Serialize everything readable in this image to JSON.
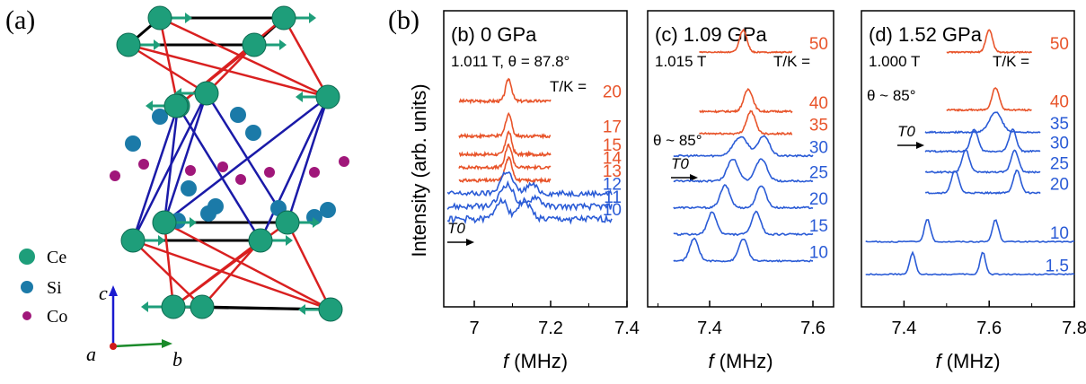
{
  "figure_label": "(b)",
  "structure": {
    "panel_label": "(a)",
    "legend": [
      {
        "label": "Ce",
        "color": "#1e9e7a"
      },
      {
        "label": "Si",
        "color": "#1b7aa8"
      },
      {
        "label": "Co",
        "color": "#a0177a"
      }
    ],
    "axes": {
      "c": "c",
      "a": "a",
      "b": "b"
    },
    "colors": {
      "ce": "#1e9e7a",
      "si": "#1b7aa8",
      "co": "#a0177a",
      "bond_red": "#d92020",
      "bond_blue": "#1a1aa8",
      "bond_black": "#000000",
      "moment": "#1e9e7a"
    }
  },
  "shared": {
    "ylabel": "Intensity (arb. units)",
    "xlabel_italic": "f",
    "xlabel_rest": " (MHz)",
    "orange": "#e8542a",
    "blue": "#2a5bd6"
  },
  "chart_data": [
    {
      "type": "line",
      "title": "(b) 0 GPa",
      "subtitle": "1.011 T, θ = 87.8°",
      "tk_label": "T/K =",
      "t0_label": "T0",
      "xlim": [
        6.92,
        7.4
      ],
      "xticks": [
        7,
        7.2,
        7.4
      ],
      "xtick_labels": [
        "7",
        "7.2",
        "7.4"
      ],
      "series": [
        {
          "label": "20",
          "color": "orange",
          "x0": 6.96,
          "x1": 7.2,
          "peaks": [
            [
              7.09,
              1.0,
              0.011
            ]
          ],
          "baseline": 0.695,
          "temp_label_y": 0.708,
          "noise": 0.01
        },
        {
          "label": "17",
          "color": "orange",
          "x0": 6.96,
          "x1": 7.2,
          "peaks": [
            [
              7.09,
              1.0,
              0.011
            ]
          ],
          "baseline": 0.577,
          "temp_label_y": 0.59,
          "noise": 0.01
        },
        {
          "label": "15",
          "color": "orange",
          "x0": 6.96,
          "x1": 7.2,
          "peaks": [
            [
              7.09,
              1.0,
              0.011
            ]
          ],
          "baseline": 0.515,
          "temp_label_y": 0.528,
          "noise": 0.01
        },
        {
          "label": "14",
          "color": "orange",
          "x0": 6.96,
          "x1": 7.2,
          "peaks": [
            [
              7.09,
              1.0,
              0.012
            ]
          ],
          "baseline": 0.471,
          "temp_label_y": 0.484,
          "noise": 0.01
        },
        {
          "label": "13",
          "color": "orange",
          "x0": 6.96,
          "x1": 7.2,
          "peaks": [
            [
              7.09,
              1.0,
              0.013
            ]
          ],
          "baseline": 0.427,
          "temp_label_y": 0.44,
          "noise": 0.01
        },
        {
          "label": "12",
          "color": "blue",
          "x0": 6.93,
          "x1": 7.36,
          "peaks": [
            [
              7.085,
              1.0,
              0.022
            ],
            [
              7.15,
              0.4,
              0.02
            ]
          ],
          "baseline": 0.383,
          "temp_label_y": 0.396,
          "noise": 0.018
        },
        {
          "label": "11",
          "color": "blue",
          "x0": 6.93,
          "x1": 7.36,
          "peaks": [
            [
              7.085,
              1.0,
              0.025
            ],
            [
              7.16,
              0.45,
              0.02
            ]
          ],
          "baseline": 0.339,
          "temp_label_y": 0.352,
          "noise": 0.02
        },
        {
          "label": "10",
          "color": "blue",
          "x0": 6.93,
          "x1": 7.36,
          "peaks": [
            [
              7.07,
              0.9,
              0.02
            ],
            [
              7.13,
              0.8,
              0.025
            ]
          ],
          "baseline": 0.296,
          "temp_label_y": 0.309,
          "noise": 0.022
        }
      ]
    },
    {
      "type": "line",
      "title": "(c) 1.09 GPa",
      "subtitle": "1.015 T",
      "theta": "θ ~ 85°",
      "tk_label": "T/K =",
      "t0_label": "T0",
      "xlim": [
        7.28,
        7.64
      ],
      "xticks": [
        7.4,
        7.6
      ],
      "xtick_labels": [
        "7.4",
        "7.6"
      ],
      "series": [
        {
          "label": "50",
          "color": "orange",
          "x0": 7.38,
          "x1": 7.56,
          "peaks": [
            [
              7.465,
              1.0,
              0.01
            ]
          ],
          "baseline": 0.86,
          "temp_label_y": 0.87,
          "noise": 0.004
        },
        {
          "label": "40",
          "color": "orange",
          "x0": 7.38,
          "x1": 7.56,
          "peaks": [
            [
              7.475,
              1.0,
              0.012
            ]
          ],
          "baseline": 0.66,
          "temp_label_y": 0.67,
          "noise": 0.006
        },
        {
          "label": "35",
          "color": "orange",
          "x0": 7.38,
          "x1": 7.56,
          "peaks": [
            [
              7.48,
              1.0,
              0.012
            ]
          ],
          "baseline": 0.585,
          "temp_label_y": 0.595,
          "noise": 0.006
        },
        {
          "label": "30",
          "color": "blue",
          "x0": 7.33,
          "x1": 7.6,
          "peaks": [
            [
              7.46,
              0.85,
              0.02
            ],
            [
              7.505,
              0.9,
              0.015
            ]
          ],
          "baseline": 0.51,
          "temp_label_y": 0.52,
          "noise": 0.006
        },
        {
          "label": "25",
          "color": "blue",
          "x0": 7.33,
          "x1": 7.6,
          "peaks": [
            [
              7.445,
              1.0,
              0.015
            ],
            [
              7.5,
              1.0,
              0.015
            ]
          ],
          "baseline": 0.425,
          "temp_label_y": 0.435,
          "noise": 0.006
        },
        {
          "label": "20",
          "color": "blue",
          "x0": 7.33,
          "x1": 7.6,
          "peaks": [
            [
              7.43,
              1.0,
              0.013
            ],
            [
              7.5,
              1.0,
              0.013
            ]
          ],
          "baseline": 0.335,
          "temp_label_y": 0.345,
          "noise": 0.006
        },
        {
          "label": "15",
          "color": "blue",
          "x0": 7.33,
          "x1": 7.6,
          "peaks": [
            [
              7.405,
              1.0,
              0.012
            ],
            [
              7.49,
              1.0,
              0.012
            ]
          ],
          "baseline": 0.245,
          "temp_label_y": 0.255,
          "noise": 0.006
        },
        {
          "label": "10",
          "color": "blue",
          "x0": 7.33,
          "x1": 7.6,
          "peaks": [
            [
              7.37,
              1.0,
              0.012
            ],
            [
              7.465,
              1.0,
              0.012
            ]
          ],
          "baseline": 0.155,
          "temp_label_y": 0.165,
          "noise": 0.005
        }
      ]
    },
    {
      "type": "line",
      "title": "(d) 1.52 GPa",
      "subtitle": "1.000 T",
      "theta": "θ ~ 85°",
      "tk_label": "T/K =",
      "t0_label": "T0",
      "xlim": [
        7.3,
        7.8
      ],
      "xticks": [
        7.4,
        7.6,
        7.8
      ],
      "xtick_labels": [
        "7.4",
        "7.6",
        "7.8"
      ],
      "series": [
        {
          "label": "50",
          "color": "orange",
          "x0": 7.5,
          "x1": 7.7,
          "peaks": [
            [
              7.6,
              1.0,
              0.011
            ]
          ],
          "baseline": 0.86,
          "temp_label_y": 0.87,
          "noise": 0.004
        },
        {
          "label": "40",
          "color": "orange",
          "x0": 7.5,
          "x1": 7.7,
          "peaks": [
            [
              7.615,
              1.0,
              0.012
            ]
          ],
          "baseline": 0.665,
          "temp_label_y": 0.675,
          "noise": 0.005
        },
        {
          "label": "35",
          "color": "blue",
          "x0": 7.45,
          "x1": 7.72,
          "peaks": [
            [
              7.615,
              0.9,
              0.02
            ]
          ],
          "baseline": 0.59,
          "temp_label_y": 0.6,
          "noise": 0.005
        },
        {
          "label": "30",
          "color": "blue",
          "x0": 7.45,
          "x1": 7.72,
          "peaks": [
            [
              7.565,
              1.0,
              0.012
            ],
            [
              7.655,
              1.0,
              0.012
            ]
          ],
          "baseline": 0.525,
          "temp_label_y": 0.535,
          "noise": 0.005
        },
        {
          "label": "25",
          "color": "blue",
          "x0": 7.45,
          "x1": 7.72,
          "peaks": [
            [
              7.545,
              1.0,
              0.012
            ],
            [
              7.66,
              1.0,
              0.012
            ]
          ],
          "baseline": 0.455,
          "temp_label_y": 0.465,
          "noise": 0.005
        },
        {
          "label": "20",
          "color": "blue",
          "x0": 7.45,
          "x1": 7.72,
          "peaks": [
            [
              7.52,
              1.0,
              0.012
            ],
            [
              7.665,
              1.0,
              0.012
            ]
          ],
          "baseline": 0.385,
          "temp_label_y": 0.395,
          "noise": 0.005
        },
        {
          "label": "10",
          "color": "blue",
          "x0": 7.31,
          "x1": 7.8,
          "peaks": [
            [
              7.455,
              1.0,
              0.01
            ],
            [
              7.615,
              1.0,
              0.01
            ]
          ],
          "baseline": 0.22,
          "temp_label_y": 0.23,
          "noise": 0.004
        },
        {
          "label": "1.5",
          "color": "blue",
          "x0": 7.31,
          "x1": 7.8,
          "peaks": [
            [
              7.42,
              1.0,
              0.009
            ],
            [
              7.585,
              1.0,
              0.009
            ]
          ],
          "baseline": 0.11,
          "temp_label_y": 0.12,
          "noise": 0.004
        }
      ]
    }
  ]
}
